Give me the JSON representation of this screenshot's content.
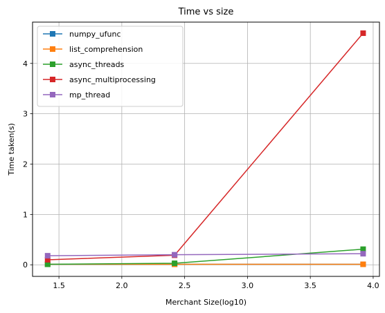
{
  "chart_data": {
    "type": "line",
    "title": "Time vs size",
    "xlabel": "Merchant Size(log10)",
    "ylabel": "Time taken(s)",
    "x": [
      1.41,
      2.42,
      3.92
    ],
    "xlim": [
      1.29,
      4.05
    ],
    "ylim": [
      -0.23,
      4.82
    ],
    "xticks": [
      1.5,
      2.0,
      2.5,
      3.0,
      3.5,
      4.0
    ],
    "xtick_labels": [
      "1.5",
      "2.0",
      "2.5",
      "3.0",
      "3.5",
      "4.0"
    ],
    "yticks": [
      0,
      1,
      2,
      3,
      4
    ],
    "ytick_labels": [
      "0",
      "1",
      "2",
      "3",
      "4"
    ],
    "grid": true,
    "legend_position": "top-left",
    "marker": "square",
    "series": [
      {
        "name": "numpy_ufunc",
        "color": "#1f77b4",
        "values": [
          0.01,
          0.01,
          0.01
        ]
      },
      {
        "name": "list_comprehension",
        "color": "#ff7f0e",
        "values": [
          0.01,
          0.01,
          0.01
        ]
      },
      {
        "name": "async_threads",
        "color": "#2ca02c",
        "values": [
          0.01,
          0.03,
          0.31
        ]
      },
      {
        "name": "async_multiprocessing",
        "color": "#d62728",
        "values": [
          0.1,
          0.19,
          4.6
        ]
      },
      {
        "name": "mp_thread",
        "color": "#9467bd",
        "values": [
          0.18,
          0.2,
          0.22
        ]
      }
    ]
  }
}
